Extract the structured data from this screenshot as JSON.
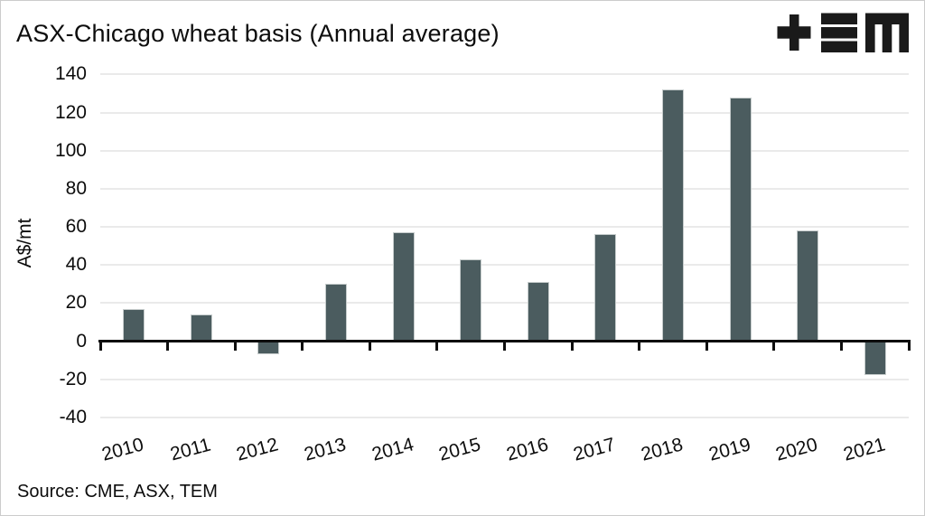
{
  "header": {
    "title": "ASX-Chicago wheat basis (Annual average)",
    "logo": {
      "brand": "TEM",
      "color": "#1a1a1a"
    }
  },
  "footer": {
    "source": "Source: CME, ASX, TEM"
  },
  "chart_data": {
    "type": "bar",
    "title": "ASX-Chicago wheat basis (Annual average)",
    "categories": [
      "2010",
      "2011",
      "2012",
      "2013",
      "2014",
      "2015",
      "2016",
      "2017",
      "2018",
      "2019",
      "2020",
      "2021"
    ],
    "values": [
      17,
      14,
      -7,
      30,
      57,
      43,
      31,
      56,
      132,
      128,
      58,
      -18
    ],
    "xlabel": "",
    "ylabel": "A$/mt",
    "yticks": [
      140,
      120,
      100,
      80,
      60,
      40,
      20,
      0,
      -20,
      -40
    ],
    "ylim": [
      -40,
      140
    ],
    "grid": "horizontal",
    "legend": "none",
    "bar_color": "#4b5c5f",
    "axis_color": "#0d0d0d",
    "gridline_color": "#eaeaea",
    "source": "Source: CME, ASX, TEM"
  }
}
